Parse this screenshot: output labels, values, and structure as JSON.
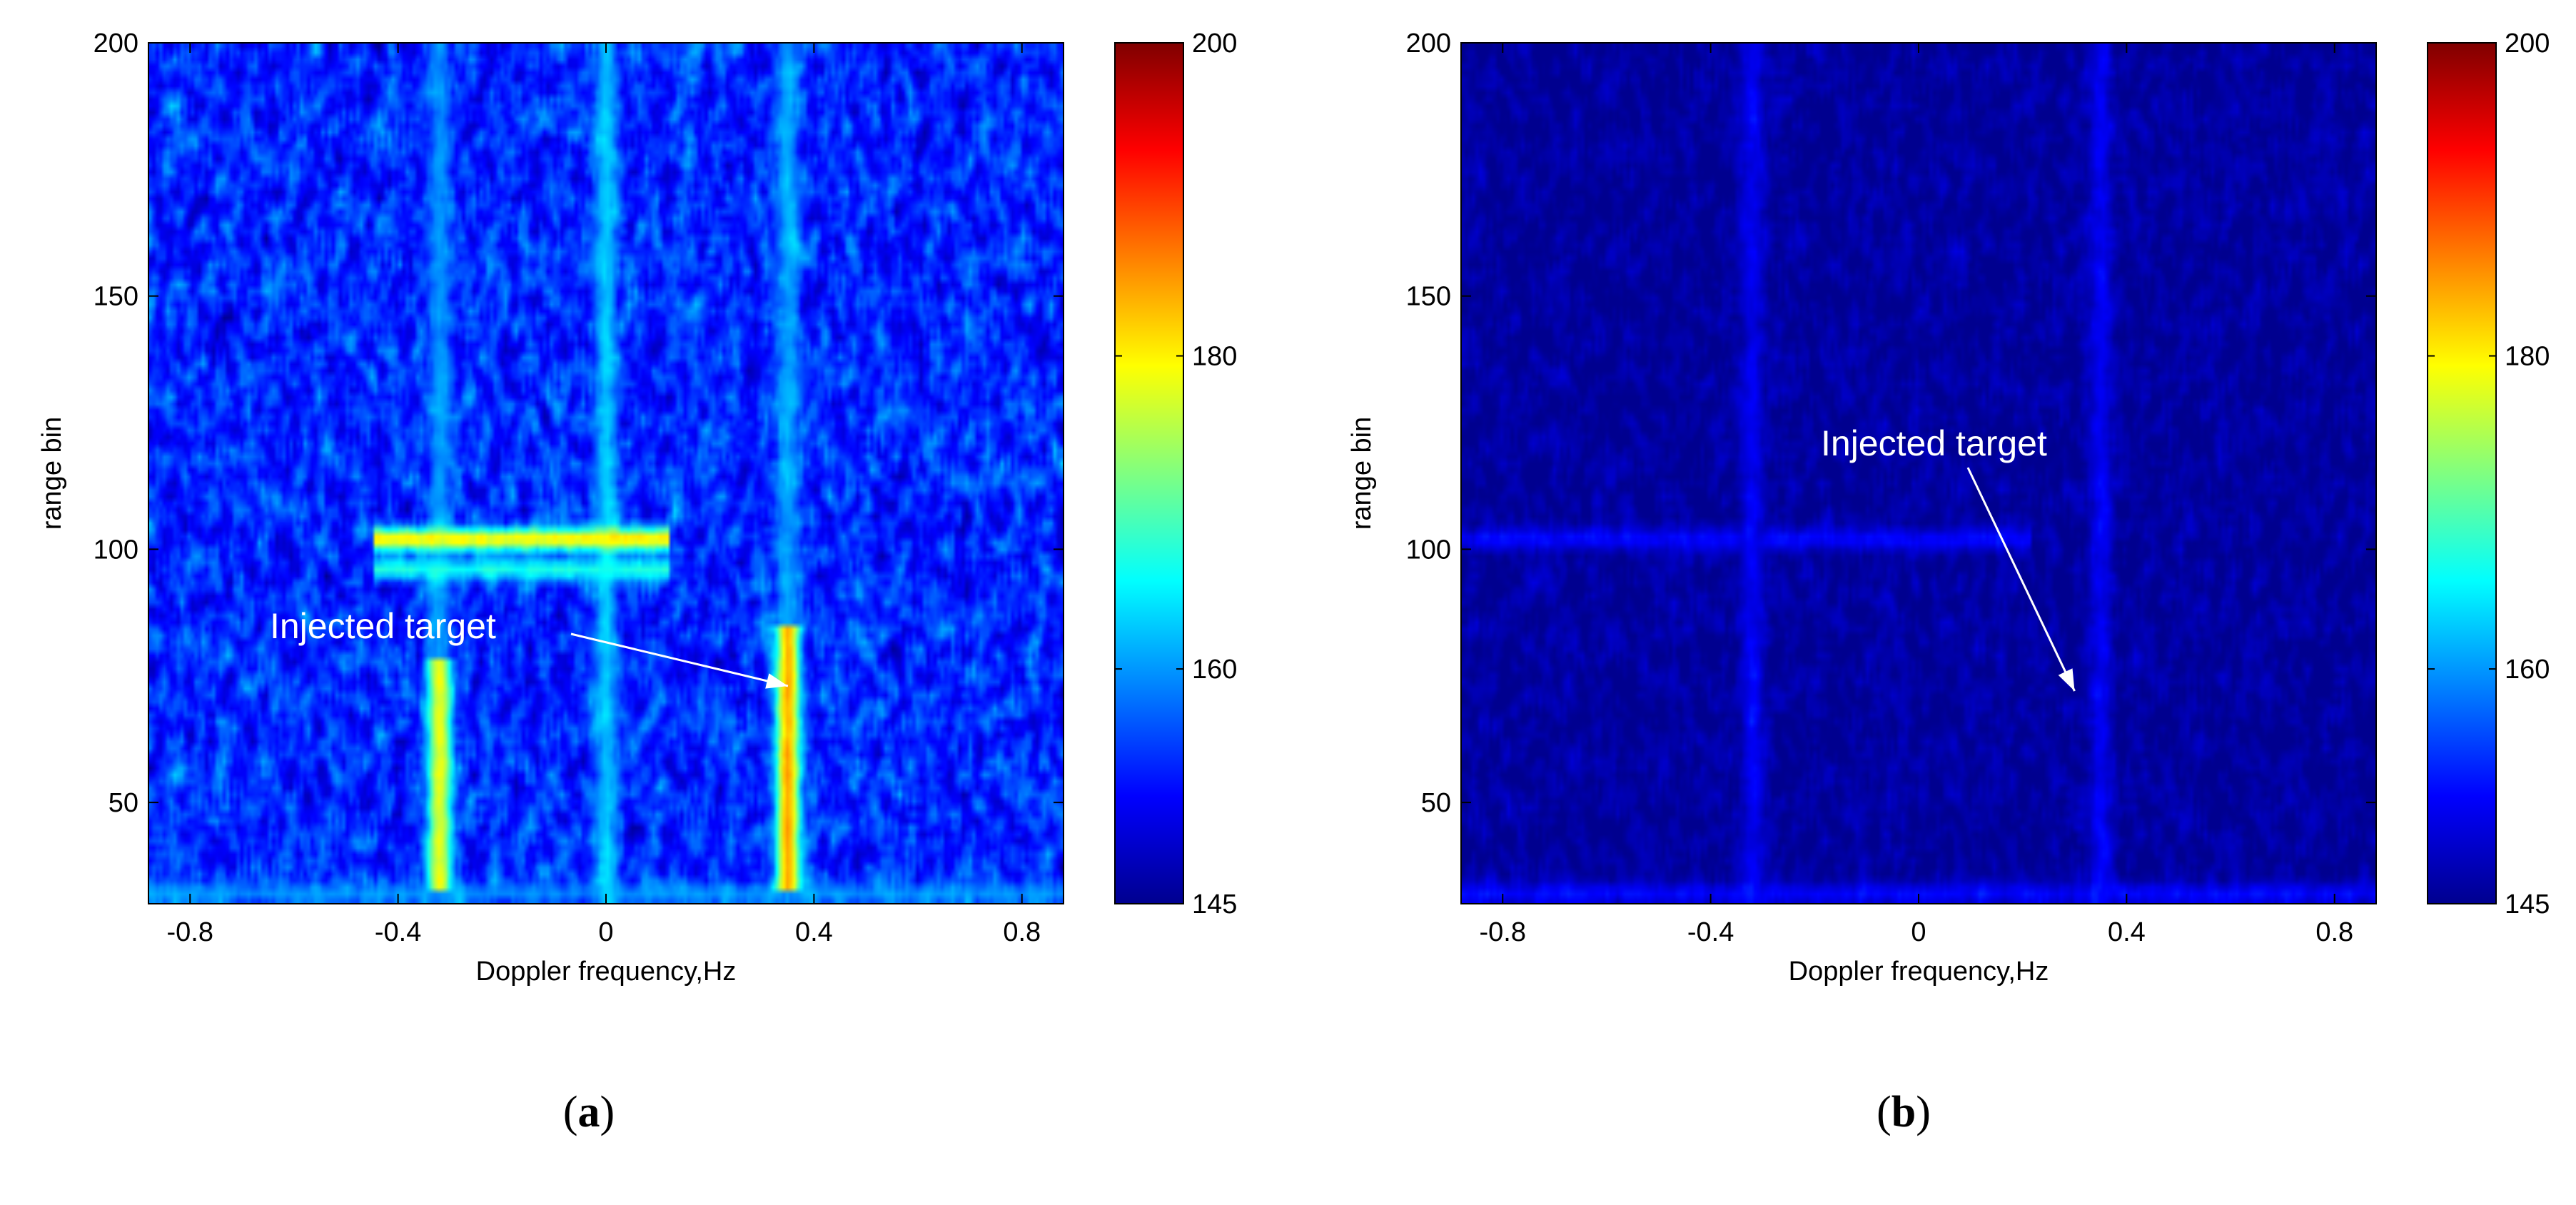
{
  "colors": {
    "colormap": [
      "#00008f",
      "#0000ff",
      "#0080ff",
      "#00ffff",
      "#80ff80",
      "#ffff00",
      "#ff8000",
      "#ff0000",
      "#800000"
    ],
    "annotation": "#ffffff",
    "axis": "#000000"
  },
  "chart_data": [
    {
      "type": "heatmap",
      "panel_label": "a",
      "title": "",
      "xlabel": "Doppler frequency,Hz",
      "ylabel": "range bin",
      "xlim": [
        -0.88,
        0.88
      ],
      "ylim": [
        30,
        200
      ],
      "x_ticks": [
        -0.8,
        -0.4,
        0,
        0.4,
        0.8
      ],
      "x_tick_labels": [
        "-0.8",
        "-0.4",
        "0",
        "0.4",
        "0.8"
      ],
      "y_ticks": [
        50,
        100,
        150,
        200
      ],
      "y_tick_labels": [
        "50",
        "100",
        "150",
        "200"
      ],
      "colorbar": {
        "range": [
          145,
          200
        ],
        "ticks": [
          145,
          160,
          180,
          200
        ],
        "tick_labels": [
          "145",
          "160",
          "180",
          "200"
        ]
      },
      "background_level": 154,
      "noise_level": 7,
      "features": [
        {
          "kind": "vertical-line",
          "x": -0.32,
          "y_range": [
            30,
            200
          ],
          "level": 160
        },
        {
          "kind": "vertical-line",
          "x": 0.0,
          "y_range": [
            30,
            200
          ],
          "level": 163
        },
        {
          "kind": "vertical-line",
          "x": 0.35,
          "y_range": [
            30,
            200
          ],
          "level": 161
        },
        {
          "kind": "vertical-line",
          "x": -0.32,
          "y_range": [
            33,
            78
          ],
          "level": 178
        },
        {
          "kind": "vertical-line",
          "x": 0.35,
          "y_range": [
            33,
            85
          ],
          "level": 184
        },
        {
          "kind": "horizontal-line",
          "y": 102,
          "x_range": [
            -0.45,
            0.12
          ],
          "level": 181
        },
        {
          "kind": "horizontal-line",
          "y": 96,
          "x_range": [
            -0.45,
            0.12
          ],
          "level": 167
        },
        {
          "kind": "horizontal-line",
          "y": 32,
          "x_range": [
            -0.88,
            0.88
          ],
          "level": 160
        }
      ],
      "annotation": {
        "text": "Injected target",
        "target": {
          "x": 0.35,
          "y": 73
        }
      }
    },
    {
      "type": "heatmap",
      "panel_label": "b",
      "title": "",
      "xlabel": "Doppler frequency,Hz",
      "ylabel": "range bin",
      "xlim": [
        -0.88,
        0.88
      ],
      "ylim": [
        30,
        200
      ],
      "x_ticks": [
        -0.8,
        -0.4,
        0,
        0.4,
        0.8
      ],
      "x_tick_labels": [
        "-0.8",
        "-0.4",
        "0",
        "0.4",
        "0.8"
      ],
      "y_ticks": [
        50,
        100,
        150,
        200
      ],
      "y_tick_labels": [
        "50",
        "100",
        "150",
        "200"
      ],
      "colorbar": {
        "range": [
          145,
          200
        ],
        "ticks": [
          145,
          160,
          180,
          200
        ],
        "tick_labels": [
          "145",
          "160",
          "180",
          "200"
        ]
      },
      "background_level": 146,
      "noise_level": 3,
      "features": [
        {
          "kind": "vertical-line",
          "x": -0.32,
          "y_range": [
            30,
            200
          ],
          "level": 151
        },
        {
          "kind": "vertical-line",
          "x": 0.35,
          "y_range": [
            30,
            200
          ],
          "level": 151
        },
        {
          "kind": "horizontal-line",
          "y": 102,
          "x_range": [
            -0.88,
            0.22
          ],
          "level": 152
        },
        {
          "kind": "horizontal-line",
          "y": 32,
          "x_range": [
            -0.88,
            0.88
          ],
          "level": 152
        }
      ],
      "annotation": {
        "text": "Injected target",
        "target": {
          "x": 0.3,
          "y": 72
        }
      }
    }
  ]
}
